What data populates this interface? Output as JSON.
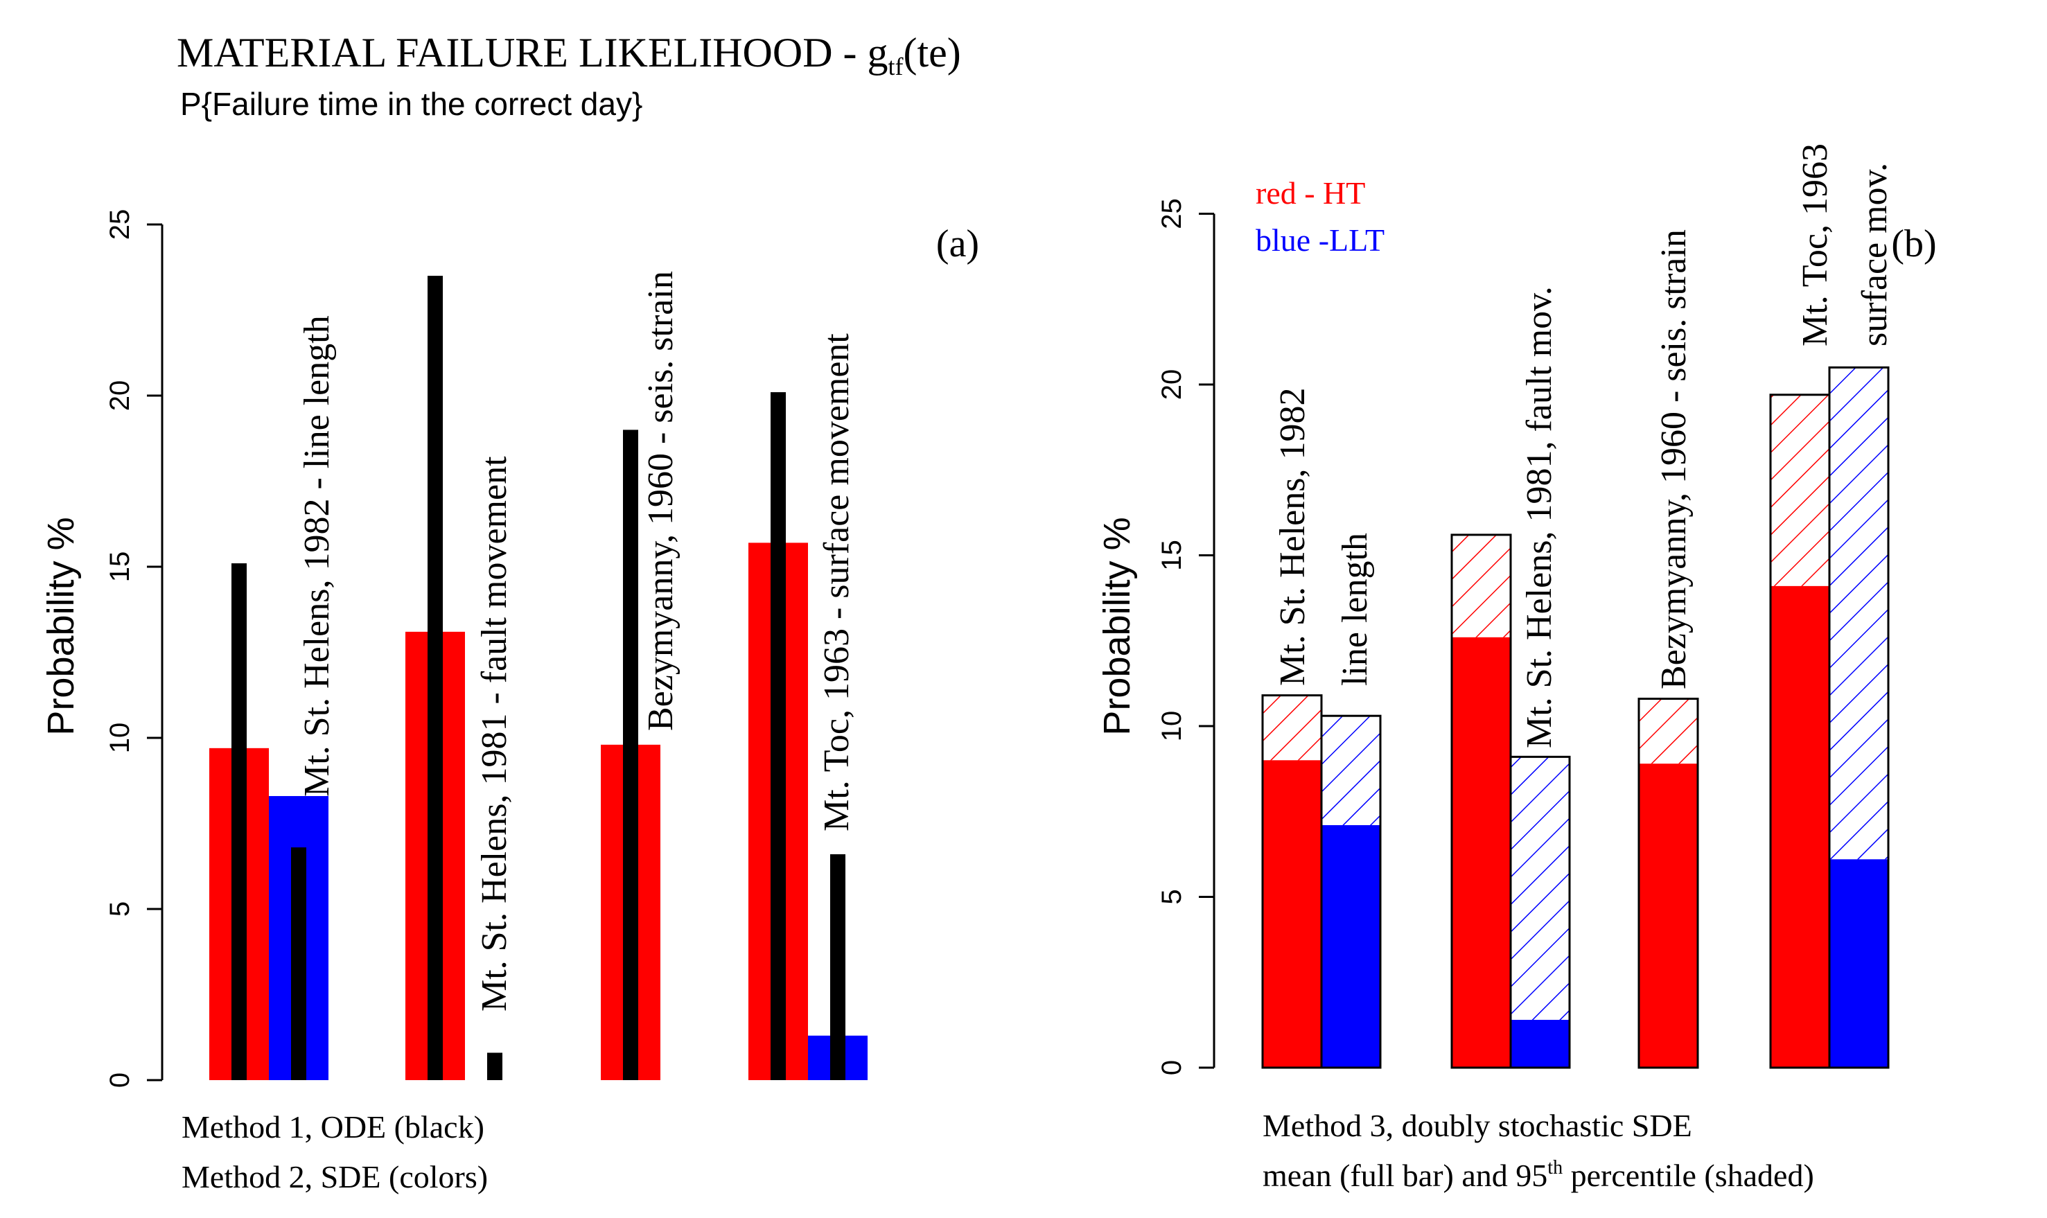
{
  "figure": {
    "title_prefix": "MATERIAL FAILURE LIKELIHOOD - g",
    "title_subscript": "tf",
    "title_suffix": "(te)",
    "subtitle": "P{Failure time in the correct day}"
  },
  "colors": {
    "red": "#ff0000",
    "blue": "#0000ff",
    "black": "#000000"
  },
  "chart_data": [
    {
      "type": "bar",
      "panel_label": "(a)",
      "ylabel": "Probability %",
      "ylim": [
        0,
        25
      ],
      "yticks": [
        "0",
        "5",
        "10",
        "15",
        "20",
        "25"
      ],
      "legend_lines": [
        "Method 1, ODE (black)",
        "Method 2, SDE (colors)"
      ],
      "groups": [
        {
          "label": "Mt. St. Helens, 1982 - line length",
          "bars": [
            {
              "series": "Method 2, SDE",
              "color": "red",
              "value": 9.7
            },
            {
              "series": "Method 2, SDE",
              "color": "blue",
              "value": 8.3
            }
          ],
          "ode": [
            15.1,
            6.8
          ]
        },
        {
          "label": "Mt. St. Helens, 1981 - fault movement",
          "bars": [
            {
              "series": "Method 2, SDE",
              "color": "red",
              "value": 13.1
            },
            {
              "series": "Method 2, SDE",
              "color": "blue",
              "value": 0
            }
          ],
          "ode": [
            23.5,
            0.8
          ]
        },
        {
          "label": "Bezymyanny, 1960 - seis. strain",
          "bars": [
            {
              "series": "Method 2, SDE",
              "color": "red",
              "value": 9.8
            }
          ],
          "ode": [
            19.0
          ]
        },
        {
          "label": "Mt. Toc, 1963 - surface  movement",
          "bars": [
            {
              "series": "Method 2, SDE",
              "color": "red",
              "value": 15.7
            },
            {
              "series": "Method 2, SDE",
              "color": "blue",
              "value": 1.3
            }
          ],
          "ode": [
            20.1,
            6.6
          ]
        }
      ]
    },
    {
      "type": "bar",
      "panel_label": "(b)",
      "ylabel": "Probability %",
      "ylim": [
        0,
        25
      ],
      "yticks": [
        "0",
        "5",
        "10",
        "15",
        "20",
        "25"
      ],
      "color_legend": {
        "red": "red - HT",
        "blue": "blue -LLT"
      },
      "footer_line1": "Method 3, doubly stochastic SDE",
      "footer_line2_prefix": "mean (full bar) and 95",
      "footer_line2_sup": "th",
      "footer_line2_suffix": " percentile (shaded)",
      "groups": [
        {
          "label_lines": [
            "Mt. St. Helens, 1982",
            "line length"
          ],
          "bars": [
            {
              "series": "HT",
              "color": "red",
              "mean": 9.0,
              "p95": 10.9
            },
            {
              "series": "LLT",
              "color": "blue",
              "mean": 7.1,
              "p95": 10.3
            }
          ]
        },
        {
          "label_lines": [
            "Mt. St. Helens, 1981, fault mov."
          ],
          "bars": [
            {
              "series": "HT",
              "color": "red",
              "mean": 12.6,
              "p95": 15.6
            },
            {
              "series": "LLT",
              "color": "blue",
              "mean": 1.4,
              "p95": 9.1
            }
          ]
        },
        {
          "label_lines": [
            "Bezymyanny, 1960 - seis. strain"
          ],
          "bars": [
            {
              "series": "HT",
              "color": "red",
              "mean": 8.9,
              "p95": 10.8
            }
          ]
        },
        {
          "label_lines": [
            "Mt. Toc, 1963",
            "surface  mov."
          ],
          "bars": [
            {
              "series": "HT",
              "color": "red",
              "mean": 14.1,
              "p95": 19.7
            },
            {
              "series": "LLT",
              "color": "blue",
              "mean": 6.1,
              "p95": 20.5
            }
          ]
        }
      ]
    }
  ]
}
